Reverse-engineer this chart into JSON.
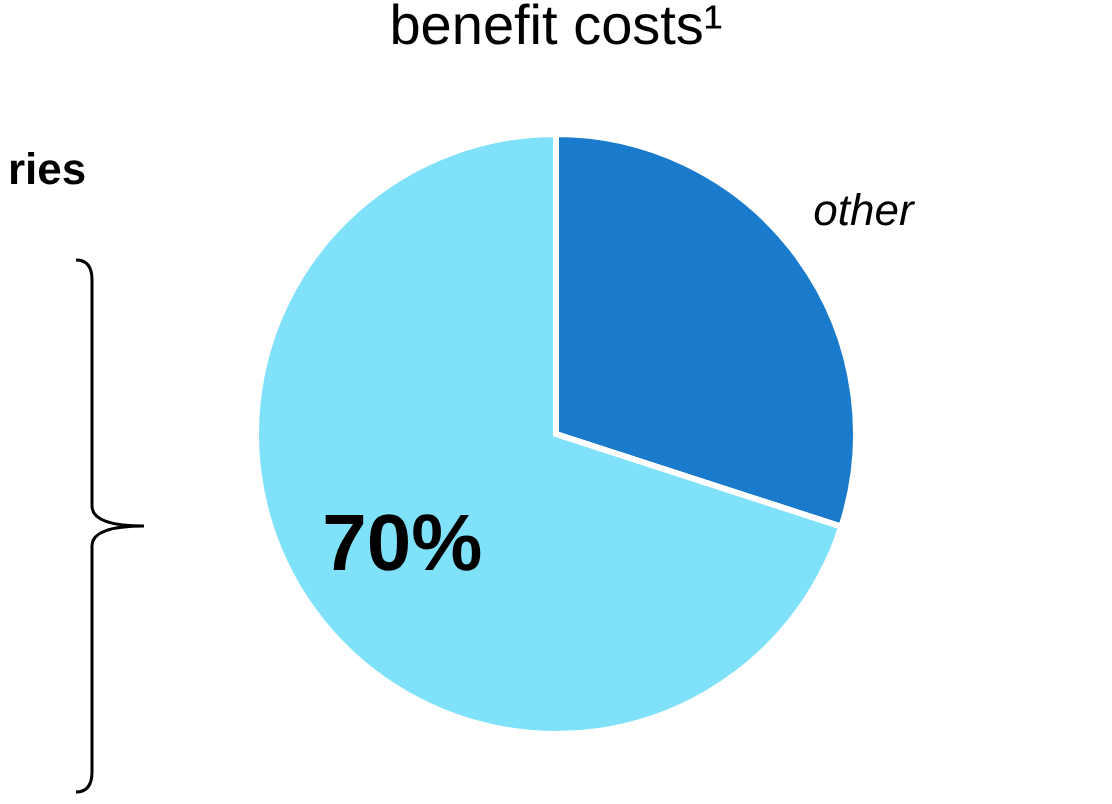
{
  "chart_data": {
    "type": "pie",
    "title": "benefit costs¹",
    "categories": [
      "other",
      null
    ],
    "values": [
      30,
      70
    ],
    "colors": [
      "#1a7bcc",
      "#80e2fa"
    ],
    "value_labels": [
      null,
      "70%"
    ],
    "annotations": [
      "ries"
    ]
  }
}
